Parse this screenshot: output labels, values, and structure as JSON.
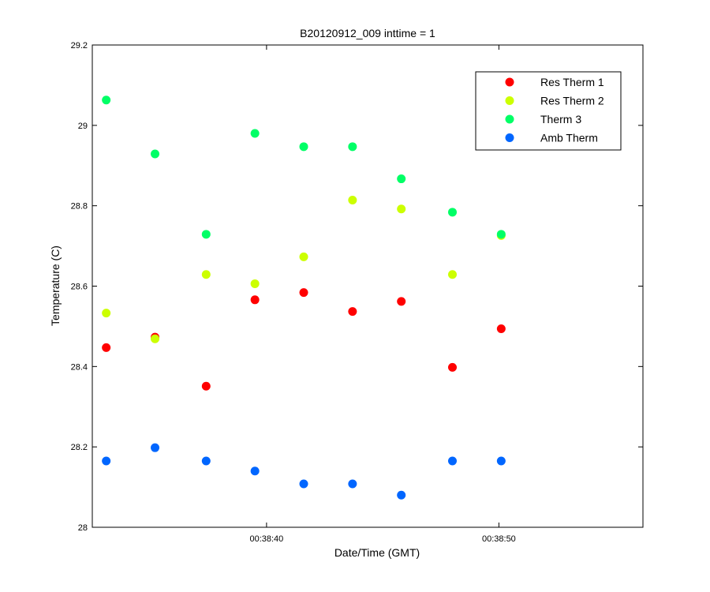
{
  "chart_data": {
    "type": "scatter",
    "title": "B20120912_009 inttime = 1",
    "xlabel": "Date/Time (GMT)",
    "ylabel": "Temperature (C)",
    "x_ticks": [
      {
        "value": "00:38:40",
        "label": "00:38:40"
      },
      {
        "value": "00:38:50",
        "label": "00:38:50"
      }
    ],
    "xlim": [
      "00:38:32.5",
      "00:38:56.2"
    ],
    "ylim": [
      28,
      29.2
    ],
    "y_ticks": [
      28,
      28.2,
      28.4,
      28.6,
      28.8,
      29,
      29.2
    ],
    "y_tick_labels": [
      "28",
      "28.2",
      "28.4",
      "28.6",
      "28.8",
      "29",
      "29.2"
    ],
    "grid": false,
    "legend_position": "top-right",
    "x": [
      "00:38:33.1",
      "00:38:35.2",
      "00:38:37.4",
      "00:38:39.5",
      "00:38:41.6",
      "00:38:43.7",
      "00:38:45.8",
      "00:38:48.0",
      "00:38:50.1"
    ],
    "series": [
      {
        "name": "Res Therm 1",
        "color": "#ff0000",
        "values": [
          28.447,
          28.473,
          28.351,
          28.566,
          28.584,
          28.537,
          28.562,
          28.398,
          28.494
        ]
      },
      {
        "name": "Res Therm 2",
        "color": "#ccff00",
        "values": [
          28.533,
          28.469,
          28.629,
          28.606,
          28.673,
          28.814,
          28.792,
          28.629,
          28.726
        ]
      },
      {
        "name": "Therm 3",
        "color": "#00ff66",
        "values": [
          29.063,
          28.929,
          28.729,
          28.98,
          28.947,
          28.947,
          28.867,
          28.784,
          28.729
        ]
      },
      {
        "name": "Amb Therm",
        "color": "#0066ff",
        "values": [
          28.165,
          28.198,
          28.165,
          28.14,
          28.108,
          28.108,
          28.08,
          28.165,
          28.165
        ]
      }
    ]
  }
}
